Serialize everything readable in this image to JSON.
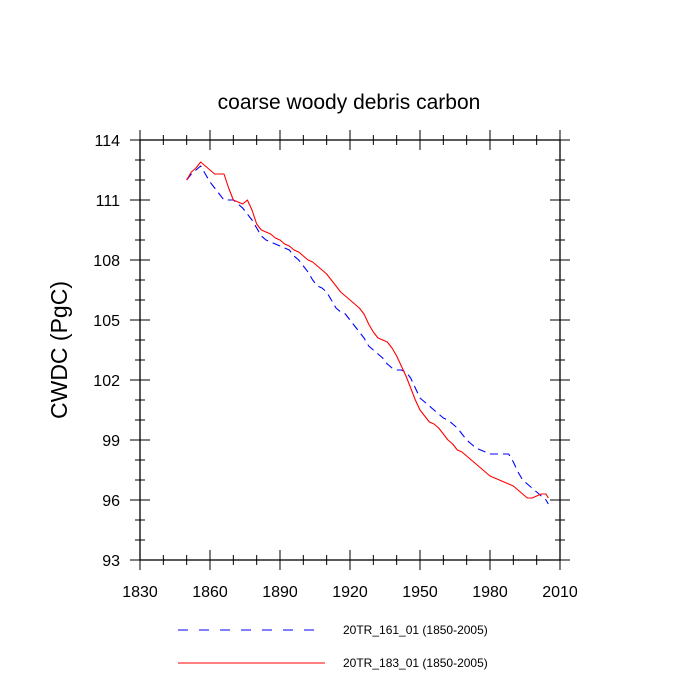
{
  "chart_data": {
    "type": "line",
    "title": "coarse woody debris carbon",
    "xlabel": "",
    "ylabel": "CWDC  (PgC)",
    "xlim": [
      1830,
      2010
    ],
    "ylim": [
      93,
      114
    ],
    "xticks": [
      1830,
      1860,
      1890,
      1920,
      1950,
      1980,
      2010
    ],
    "yticks": [
      93,
      96,
      99,
      102,
      105,
      108,
      111,
      114
    ],
    "grid": false,
    "legend_position": "bottom",
    "series": [
      {
        "name": "20TR_161_01 (1850-2005)",
        "color": "#0000ff",
        "style": "dashed",
        "x": [
          1850,
          1852,
          1854,
          1856,
          1858,
          1860,
          1862,
          1864,
          1866,
          1868,
          1870,
          1872,
          1874,
          1876,
          1878,
          1880,
          1882,
          1884,
          1886,
          1888,
          1890,
          1892,
          1894,
          1896,
          1898,
          1900,
          1902,
          1904,
          1906,
          1908,
          1910,
          1912,
          1914,
          1916,
          1918,
          1920,
          1922,
          1924,
          1926,
          1928,
          1930,
          1932,
          1934,
          1936,
          1938,
          1940,
          1942,
          1944,
          1946,
          1948,
          1950,
          1952,
          1954,
          1956,
          1958,
          1960,
          1962,
          1964,
          1966,
          1968,
          1970,
          1972,
          1974,
          1976,
          1978,
          1980,
          1982,
          1984,
          1986,
          1988,
          1990,
          1992,
          1994,
          1996,
          1998,
          2000,
          2002,
          2004,
          2005
        ],
        "values": [
          112.0,
          112.3,
          112.5,
          112.7,
          112.3,
          111.9,
          111.6,
          111.3,
          111.0,
          111.0,
          111.0,
          110.8,
          110.6,
          110.3,
          110.0,
          109.6,
          109.2,
          109.0,
          108.9,
          108.8,
          108.7,
          108.6,
          108.5,
          108.2,
          108.0,
          107.7,
          107.4,
          107.0,
          106.7,
          106.6,
          106.4,
          106.0,
          105.6,
          105.4,
          105.3,
          105.0,
          104.7,
          104.4,
          104.1,
          103.7,
          103.5,
          103.3,
          103.1,
          102.8,
          102.6,
          102.5,
          102.5,
          102.4,
          102.1,
          101.6,
          101.1,
          100.9,
          100.7,
          100.5,
          100.3,
          100.1,
          100.0,
          99.8,
          99.6,
          99.3,
          99.0,
          98.8,
          98.6,
          98.5,
          98.4,
          98.3,
          98.3,
          98.3,
          98.3,
          98.3,
          97.9,
          97.4,
          97.0,
          96.8,
          96.6,
          96.4,
          96.2,
          96.0,
          95.8
        ]
      },
      {
        "name": "20TR_183_01 (1850-2005)",
        "color": "#ff0000",
        "style": "solid",
        "x": [
          1850,
          1852,
          1854,
          1856,
          1858,
          1860,
          1862,
          1864,
          1866,
          1868,
          1870,
          1872,
          1874,
          1876,
          1878,
          1880,
          1882,
          1884,
          1886,
          1888,
          1890,
          1892,
          1894,
          1896,
          1898,
          1900,
          1902,
          1904,
          1906,
          1908,
          1910,
          1912,
          1914,
          1916,
          1918,
          1920,
          1922,
          1924,
          1926,
          1928,
          1930,
          1932,
          1934,
          1936,
          1938,
          1940,
          1942,
          1944,
          1946,
          1948,
          1950,
          1952,
          1954,
          1956,
          1958,
          1960,
          1962,
          1964,
          1966,
          1968,
          1970,
          1972,
          1974,
          1976,
          1978,
          1980,
          1982,
          1984,
          1986,
          1988,
          1990,
          1992,
          1994,
          1996,
          1998,
          2000,
          2002,
          2004,
          2005
        ],
        "values": [
          112.0,
          112.4,
          112.6,
          112.9,
          112.7,
          112.5,
          112.3,
          112.3,
          112.3,
          111.6,
          111.0,
          110.9,
          110.8,
          111.0,
          110.5,
          109.8,
          109.5,
          109.4,
          109.3,
          109.1,
          109.0,
          108.8,
          108.7,
          108.5,
          108.4,
          108.2,
          108.0,
          107.9,
          107.7,
          107.5,
          107.3,
          107.0,
          106.7,
          106.4,
          106.2,
          106.0,
          105.8,
          105.6,
          105.3,
          104.8,
          104.4,
          104.1,
          104.0,
          103.9,
          103.6,
          103.2,
          102.7,
          102.2,
          101.6,
          101.0,
          100.5,
          100.2,
          99.9,
          99.8,
          99.6,
          99.3,
          99.0,
          98.8,
          98.5,
          98.4,
          98.2,
          98.0,
          97.8,
          97.6,
          97.4,
          97.2,
          97.1,
          97.0,
          96.9,
          96.8,
          96.7,
          96.5,
          96.3,
          96.1,
          96.1,
          96.2,
          96.3,
          96.3,
          96.1
        ]
      }
    ]
  }
}
